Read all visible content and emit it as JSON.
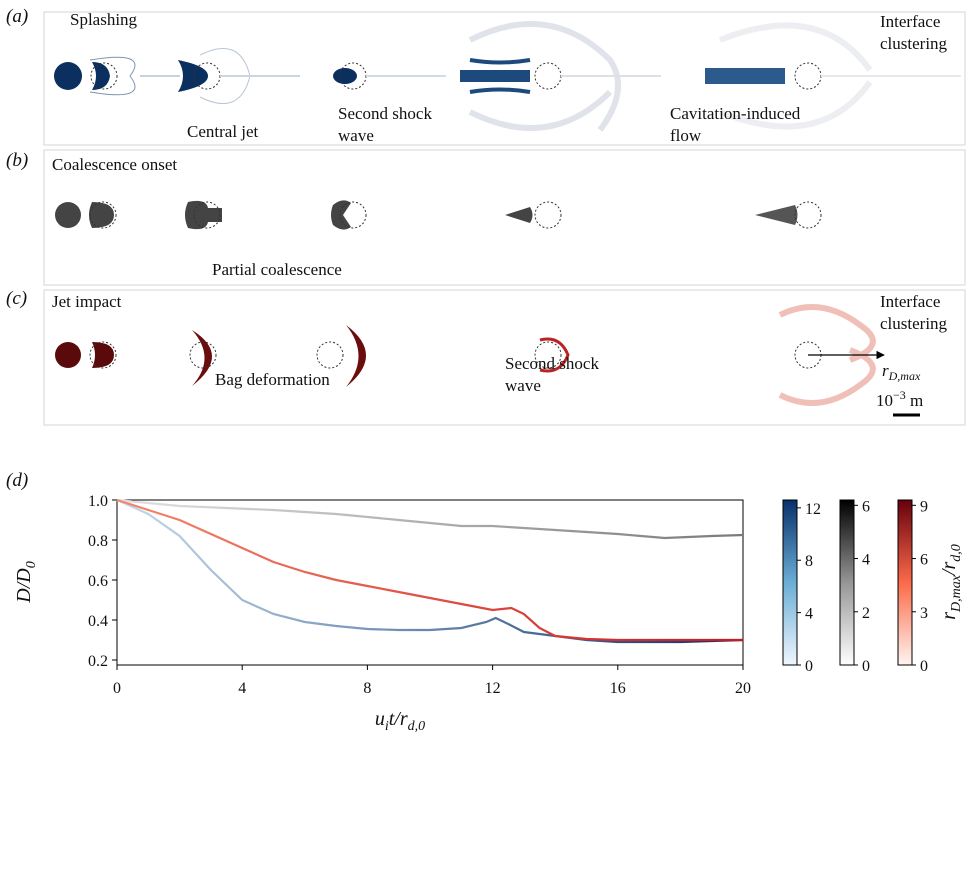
{
  "panels": [
    {
      "label": "(a)",
      "annotations": [
        [
          "Splashing"
        ],
        [
          "Central jet"
        ],
        [
          "Second shock",
          "wave"
        ],
        [
          "Cavitation-induced",
          "flow"
        ],
        [
          "Interface",
          "clustering"
        ]
      ]
    },
    {
      "label": "(b)",
      "annotations": [
        [
          "Coalescence onset"
        ],
        [
          "Partial coalescence"
        ]
      ]
    },
    {
      "label": "(c)",
      "annotations": [
        [
          "Jet impact"
        ],
        [
          "Bag deformation"
        ],
        [
          "Second shock",
          "wave"
        ],
        [
          "Interface",
          "clustering"
        ]
      ],
      "arrow_label": [
        "r",
        "D,max"
      ],
      "scale_bar": [
        "10",
        "−3",
        " m"
      ]
    }
  ],
  "chart_data": {
    "type": "line",
    "panel_label": "(d)",
    "x_label": [
      "u",
      "i",
      "t/r",
      "d,0"
    ],
    "y_label": [
      "D/D",
      "0"
    ],
    "xlim": [
      0,
      20
    ],
    "ylim": [
      0.175,
      1.0
    ],
    "xticks": [
      0,
      4,
      8,
      12,
      16,
      20
    ],
    "yticks": [
      0.2,
      0.4,
      0.6,
      0.8,
      {
        "value": 1,
        "label": "1.0"
      }
    ],
    "series": [
      {
        "x": [
          0,
          2,
          5,
          7,
          9,
          11,
          12,
          14,
          16,
          17.5,
          19,
          20
        ],
        "values": [
          1.0,
          0.97,
          0.95,
          0.93,
          0.9,
          0.87,
          0.87,
          0.85,
          0.83,
          0.81,
          0.82,
          0.825
        ],
        "colors": [
          "#e2e2e2",
          "#7a7a7a"
        ]
      },
      {
        "x": [
          0,
          1,
          2,
          3,
          4,
          5,
          6,
          7,
          8,
          9,
          10,
          11,
          11.8,
          12.1,
          12.5,
          13,
          14,
          15,
          16,
          17,
          18,
          19,
          20
        ],
        "values": [
          1.0,
          0.93,
          0.82,
          0.65,
          0.5,
          0.43,
          0.39,
          0.37,
          0.355,
          0.35,
          0.35,
          0.36,
          0.39,
          0.41,
          0.38,
          0.34,
          0.32,
          0.3,
          0.29,
          0.29,
          0.29,
          0.295,
          0.3
        ],
        "colors": [
          "#c6dbef",
          "#08306b"
        ]
      },
      {
        "x": [
          0,
          1,
          2,
          3,
          4,
          5,
          6,
          7,
          8,
          9,
          10,
          11,
          12,
          12.6,
          13,
          13.5,
          14,
          15,
          16,
          18,
          20
        ],
        "values": [
          1.0,
          0.95,
          0.9,
          0.83,
          0.76,
          0.69,
          0.64,
          0.6,
          0.57,
          0.54,
          0.51,
          0.48,
          0.45,
          0.46,
          0.43,
          0.36,
          0.32,
          0.305,
          0.3,
          0.3,
          0.3
        ],
        "colors": [
          "#f4876b",
          "#cb181d"
        ]
      }
    ],
    "colorbars": [
      {
        "lim": [
          0,
          12.6
        ],
        "ticks": [
          0,
          4,
          8,
          12
        ],
        "colors": [
          "#f0f6fd",
          "#6aaed6",
          "#08306b"
        ]
      },
      {
        "lim": [
          0,
          6.2
        ],
        "ticks": [
          0,
          2,
          4,
          6
        ],
        "colors": [
          "#ffffff",
          "#969696",
          "#000000"
        ]
      },
      {
        "lim": [
          0,
          9.3
        ],
        "ticks": [
          0,
          3,
          6,
          9
        ],
        "colors": [
          "#fff5f0",
          "#fb6a4a",
          "#67000d"
        ]
      }
    ],
    "colorbar_label": [
      "r",
      "D,max",
      "/r",
      "d,0"
    ]
  }
}
